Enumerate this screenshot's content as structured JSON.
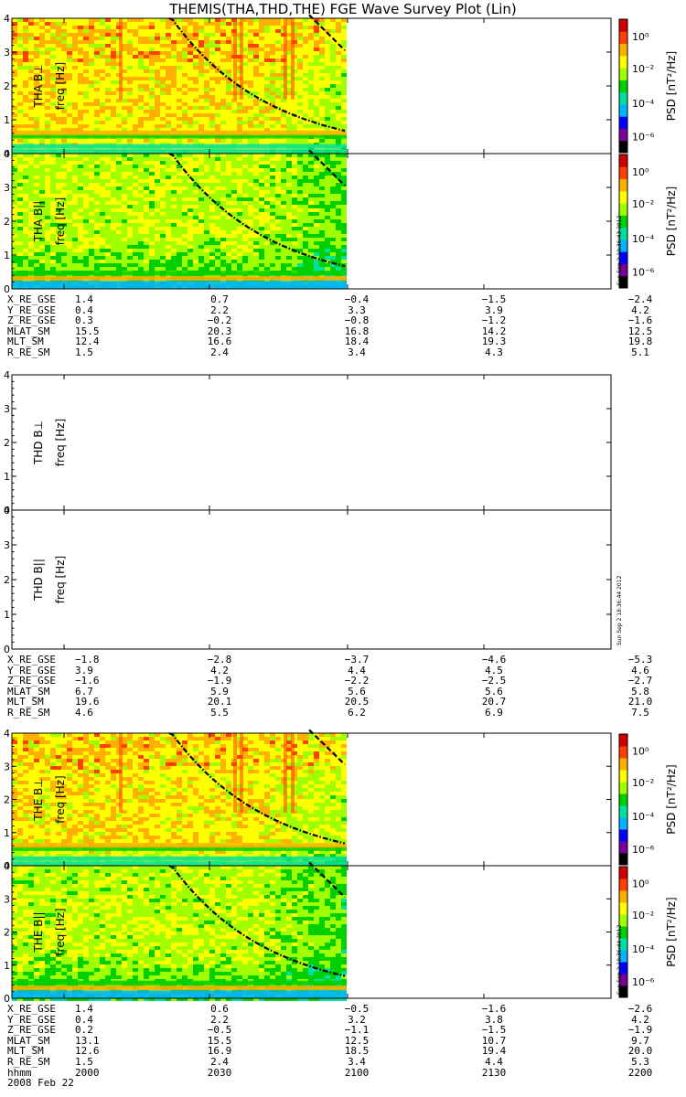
{
  "title": "THEMIS(THA,THD,THE) FGE Wave Survey Plot (Lin)",
  "colors": {
    "scale": [
      "#000000",
      "#7a0099",
      "#0000ff",
      "#00b4ff",
      "#00e0a0",
      "#00d000",
      "#a0ff00",
      "#ffff00",
      "#ffb000",
      "#ff4000",
      "#d00000"
    ],
    "fit_line": "#000000"
  },
  "colorbar": {
    "label": "PSD [nT²/Hz]",
    "ticks": [
      "10⁰",
      "10⁻²",
      "10⁻⁴",
      "10⁻⁶"
    ]
  },
  "freq_ticks": [
    "0",
    "1",
    "2",
    "3",
    "4"
  ],
  "freq_label": "freq [Hz]",
  "x_ticks": [
    "2000",
    "2030",
    "2100",
    "2130",
    "2200"
  ],
  "x_tick_row_label": "hhmm",
  "date": "2008 Feb 22",
  "stamps": [
    "Sun Sep  2 18:36:43 2012",
    "Sun Sep  2 18:36:44 2012",
    "Sun Sep  2 18:36:44 2012"
  ],
  "panels": [
    {
      "name": "THA B⊥",
      "has_data": true,
      "colorbar": true,
      "stamp": false
    },
    {
      "name": "THA B||",
      "has_data": true,
      "colorbar": true,
      "stamp": true
    },
    {
      "name": "THD B⊥",
      "has_data": false,
      "colorbar": false,
      "stamp": false
    },
    {
      "name": "THD B||",
      "has_data": false,
      "colorbar": false,
      "stamp": true
    },
    {
      "name": "THE B⊥",
      "has_data": true,
      "colorbar": true,
      "stamp": false
    },
    {
      "name": "THE B||",
      "has_data": true,
      "colorbar": true,
      "stamp": true
    }
  ],
  "ephemeris": [
    {
      "probe": "THA",
      "rows": [
        {
          "label": "X_RE_GSE",
          "values": [
            "1.4",
            "0.7",
            "-0.4",
            "-1.5",
            "-2.4"
          ]
        },
        {
          "label": "Y_RE_GSE",
          "values": [
            "0.4",
            "2.2",
            "3.3",
            "3.9",
            "4.2"
          ]
        },
        {
          "label": "Z_RE_GSE",
          "values": [
            "0.3",
            "-0.2",
            "-0.8",
            "-1.2",
            "-1.6"
          ]
        },
        {
          "label": "MLAT_SM",
          "values": [
            "15.5",
            "20.3",
            "16.8",
            "14.2",
            "12.5"
          ]
        },
        {
          "label": "MLT_SM",
          "values": [
            "12.4",
            "16.6",
            "18.4",
            "19.3",
            "19.8"
          ]
        },
        {
          "label": "R_RE_SM",
          "values": [
            "1.5",
            "2.4",
            "3.4",
            "4.3",
            "5.1"
          ]
        }
      ]
    },
    {
      "probe": "THD",
      "rows": [
        {
          "label": "X_RE_GSE",
          "values": [
            "-1.8",
            "-2.8",
            "-3.7",
            "-4.6",
            "-5.3"
          ]
        },
        {
          "label": "Y_RE_GSE",
          "values": [
            "3.9",
            "4.2",
            "4.4",
            "4.5",
            "4.6"
          ]
        },
        {
          "label": "Z_RE_GSE",
          "values": [
            "-1.6",
            "-1.9",
            "-2.2",
            "-2.5",
            "-2.7"
          ]
        },
        {
          "label": "MLAT_SM",
          "values": [
            "6.7",
            "5.9",
            "5.6",
            "5.6",
            "5.8"
          ]
        },
        {
          "label": "MLT_SM",
          "values": [
            "19.6",
            "20.1",
            "20.5",
            "20.7",
            "21.0"
          ]
        },
        {
          "label": "R_RE_SM",
          "values": [
            "4.6",
            "5.5",
            "6.2",
            "6.9",
            "7.5"
          ]
        }
      ]
    },
    {
      "probe": "THE",
      "rows": [
        {
          "label": "X_RE_GSE",
          "values": [
            "1.4",
            "0.6",
            "-0.5",
            "-1.6",
            "-2.6"
          ]
        },
        {
          "label": "Y_RE_GSE",
          "values": [
            "0.4",
            "2.2",
            "3.2",
            "3.8",
            "4.2"
          ]
        },
        {
          "label": "Z_RE_GSE",
          "values": [
            "0.2",
            "-0.5",
            "-1.1",
            "-1.5",
            "-1.9"
          ]
        },
        {
          "label": "MLAT_SM",
          "values": [
            "13.1",
            "15.5",
            "12.5",
            "10.7",
            "9.7"
          ]
        },
        {
          "label": "MLT_SM",
          "values": [
            "12.6",
            "16.9",
            "18.5",
            "19.4",
            "20.0"
          ]
        },
        {
          "label": "R_RE_SM",
          "values": [
            "1.5",
            "2.4",
            "3.4",
            "4.4",
            "5.3"
          ]
        }
      ]
    }
  ],
  "chart_data": [
    {
      "type": "heatmap",
      "title": "THEMIS(THA,THD,THE) FGE Wave Survey Plot (Lin)",
      "panel": "THA B⊥",
      "ylabel": "freq [Hz]",
      "ylim": [
        0,
        4
      ],
      "x_categories": [
        "2000",
        "2030",
        "2100",
        "2130",
        "2200"
      ],
      "data_x_range": [
        "2000",
        "2100"
      ],
      "color_scale": "log",
      "color_range": [
        "10⁻⁶",
        "10⁰"
      ]
    },
    {
      "type": "heatmap",
      "panel": "THA B||",
      "ylabel": "freq [Hz]",
      "ylim": [
        0,
        4
      ],
      "x_categories": [
        "2000",
        "2030",
        "2100",
        "2130",
        "2200"
      ],
      "data_x_range": [
        "2000",
        "2100"
      ],
      "color_scale": "log",
      "color_range": [
        "10⁻⁶",
        "10⁰"
      ]
    },
    {
      "type": "heatmap",
      "panel": "THD B⊥",
      "ylabel": "freq [Hz]",
      "ylim": [
        0,
        4
      ],
      "x_categories": [
        "2000",
        "2030",
        "2100",
        "2130",
        "2200"
      ],
      "data_x_range": null
    },
    {
      "type": "heatmap",
      "panel": "THD B||",
      "ylabel": "freq [Hz]",
      "ylim": [
        0,
        4
      ],
      "x_categories": [
        "2000",
        "2030",
        "2100",
        "2130",
        "2200"
      ],
      "data_x_range": null
    },
    {
      "type": "heatmap",
      "panel": "THE B⊥",
      "ylabel": "freq [Hz]",
      "ylim": [
        0,
        4
      ],
      "x_categories": [
        "2000",
        "2030",
        "2100",
        "2130",
        "2200"
      ],
      "data_x_range": [
        "2000",
        "2100"
      ],
      "color_scale": "log",
      "color_range": [
        "10⁻⁶",
        "10⁰"
      ]
    },
    {
      "type": "heatmap",
      "panel": "THE B||",
      "ylabel": "freq [Hz]",
      "ylim": [
        0,
        4
      ],
      "x_categories": [
        "2000",
        "2030",
        "2100",
        "2130",
        "2200"
      ],
      "data_x_range": [
        "2000",
        "2100"
      ],
      "color_scale": "log",
      "color_range": [
        "10⁻⁶",
        "10⁰"
      ]
    }
  ]
}
